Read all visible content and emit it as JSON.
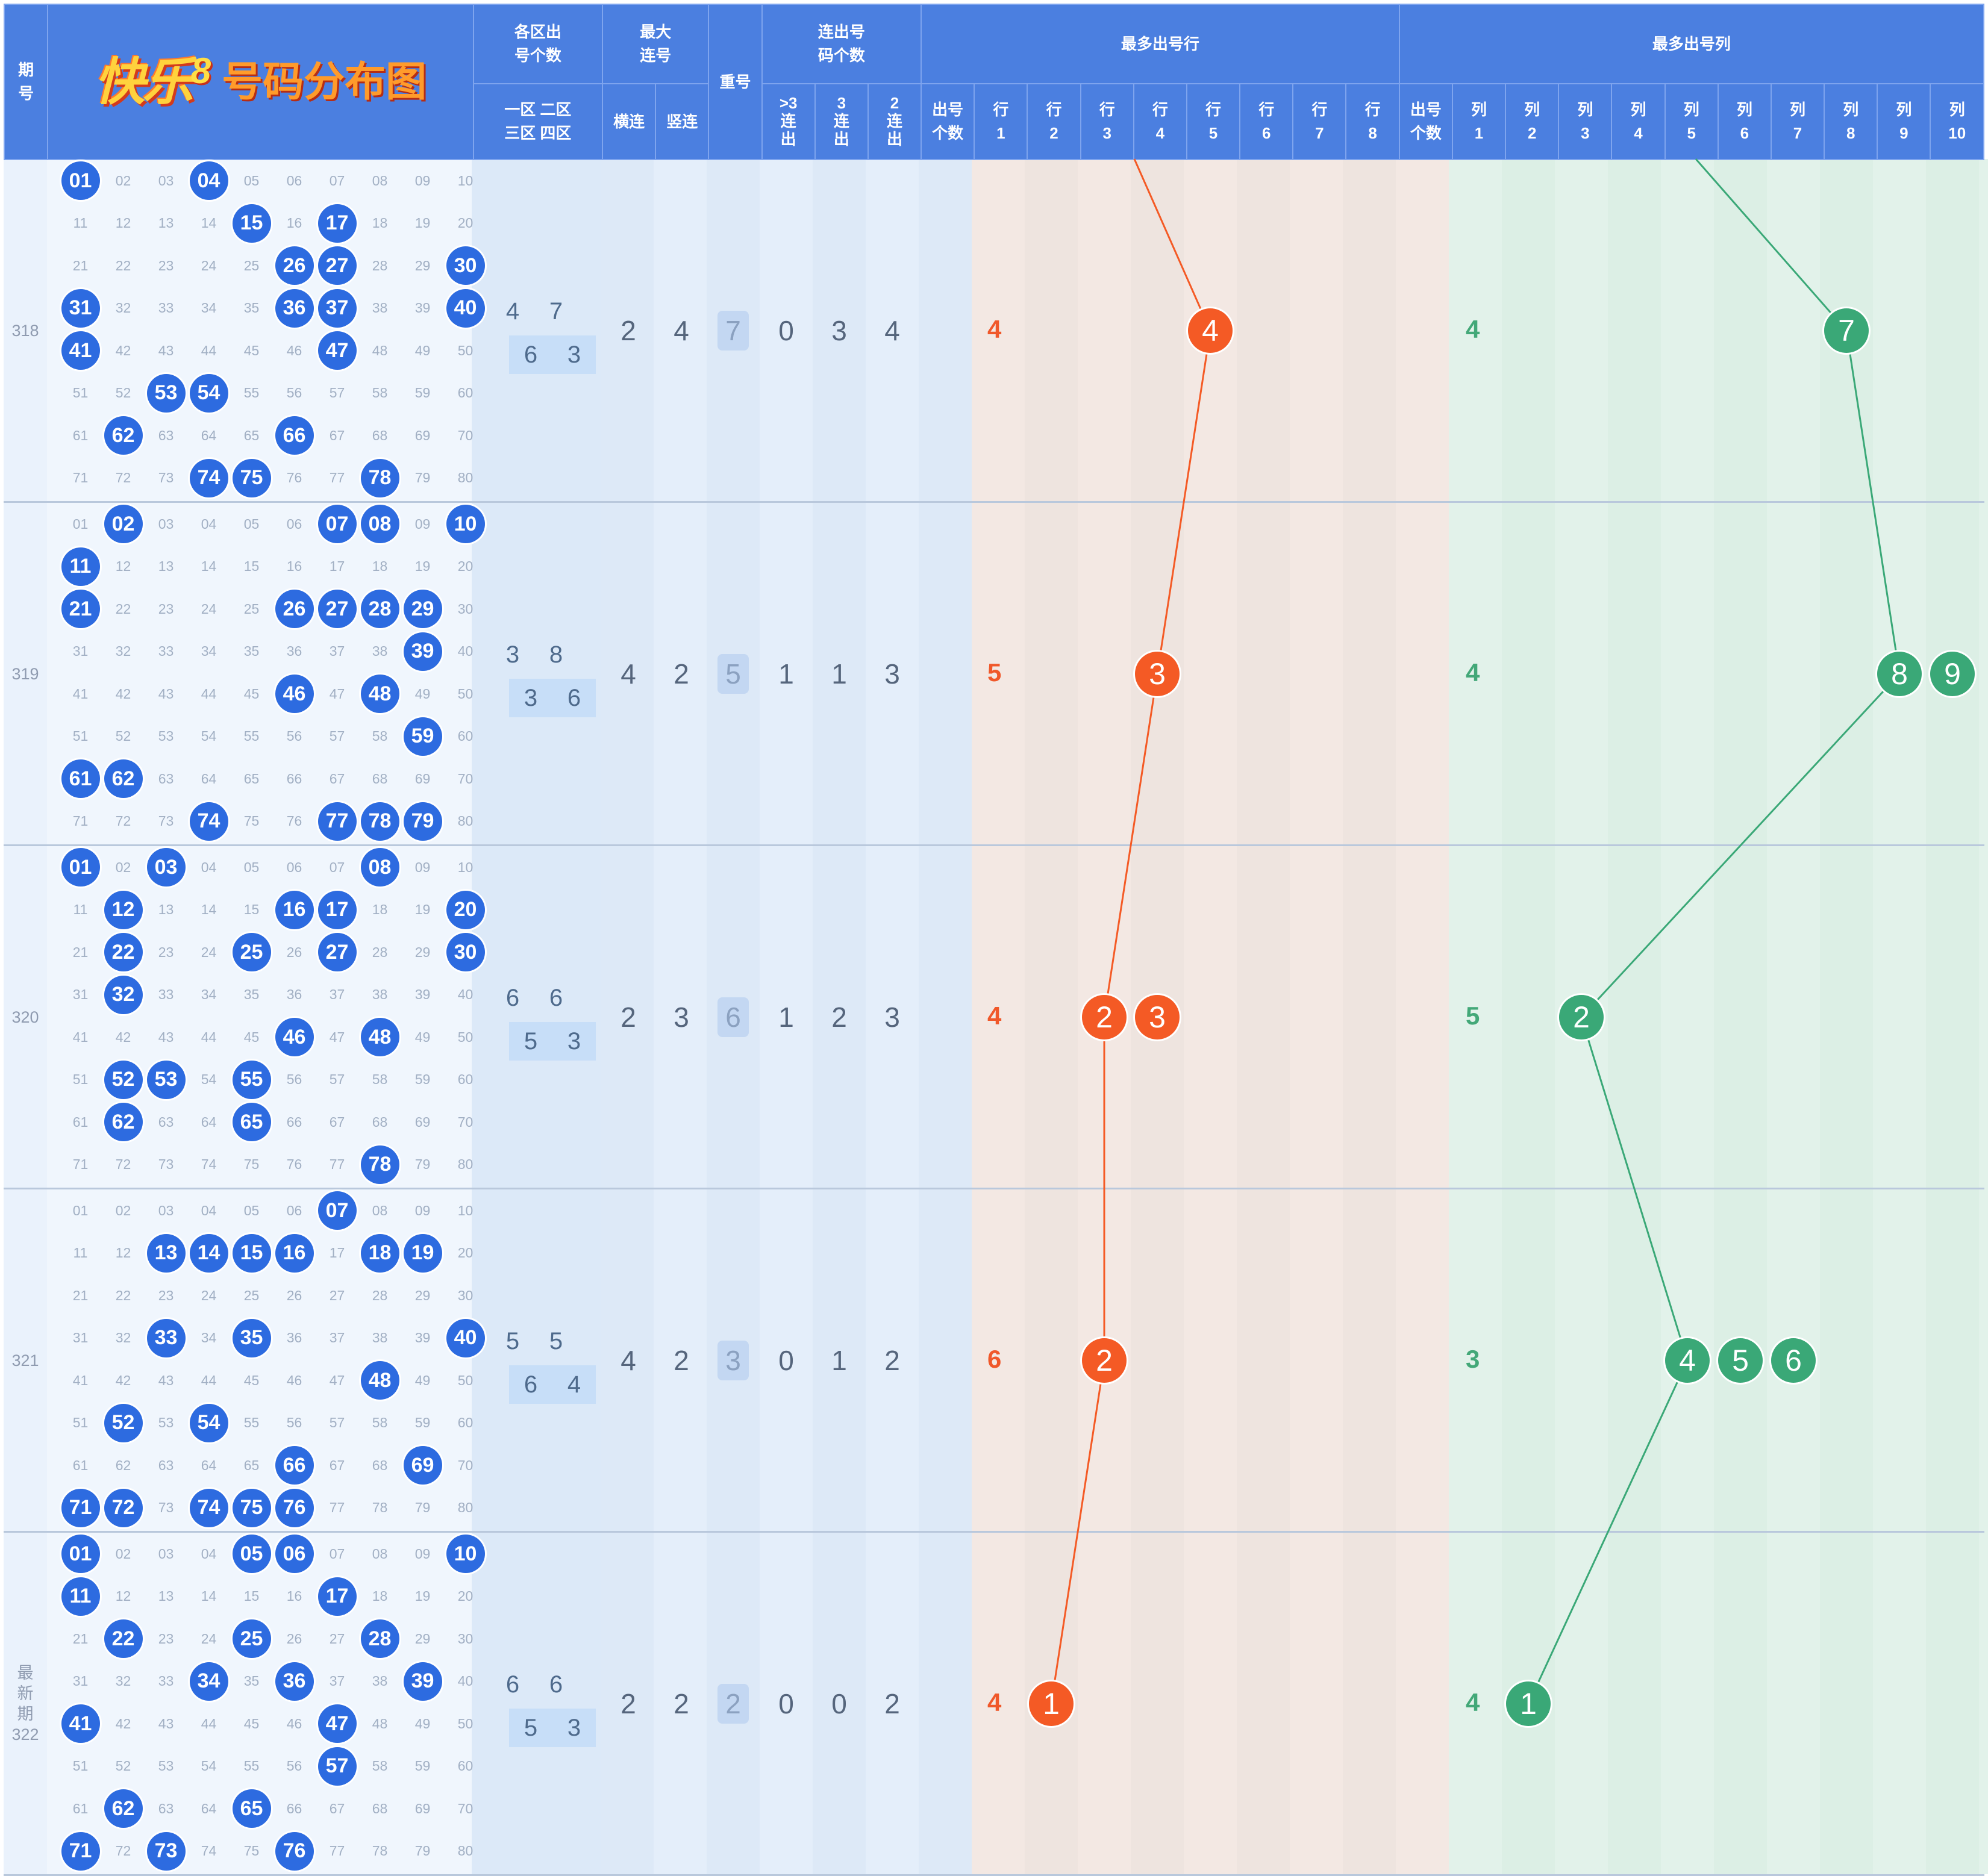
{
  "header": {
    "period": "期\n号",
    "logo_main": "快乐",
    "logo_eight": "8",
    "logo_sub": "号码分布图",
    "zone_counts": "各区出\n号个数",
    "max_consecutive": "最大\n连号",
    "repeat": "重号",
    "consecutive_count": "连出号\n码个数",
    "most_row": "最多出号行",
    "most_col": "最多出号列",
    "zone_sub": "一区 二区\n三区 四区",
    "horiz": "横连",
    "vert": "竖连",
    "gt3": ">3\n连\n出",
    "c3": "3\n连\n出",
    "c2": "2\n连\n出",
    "row_count": "出号\n个数",
    "rows": [
      "行\n1",
      "行\n2",
      "行\n3",
      "行\n4",
      "行\n5",
      "行\n6",
      "行\n7",
      "行\n8"
    ],
    "col_count": "出号\n个数",
    "cols": [
      "列\n1",
      "列\n2",
      "列\n3",
      "列\n4",
      "列\n5",
      "列\n6",
      "列\n7",
      "列\n8",
      "列\n9",
      "列\n10"
    ]
  },
  "colors": {
    "header_bg": "#4b7fe0",
    "hit_blue": "#2d6be0",
    "row_line": "#f45a25",
    "col_line": "#3aa877"
  },
  "periods": [
    {
      "label": "318",
      "hits": [
        1,
        4,
        15,
        17,
        26,
        27,
        30,
        31,
        36,
        37,
        40,
        41,
        47,
        53,
        54,
        62,
        66,
        74,
        75,
        78
      ],
      "zones": [
        "4",
        "7",
        "6",
        "3"
      ],
      "horiz": "2",
      "vert": "4",
      "repeat": "7",
      "gt3": "0",
      "c3": "3",
      "c2": "4",
      "row_count": "4",
      "row_marks": [
        {
          "row": 4,
          "label": "4"
        }
      ],
      "row_line_at": 4,
      "col_count": "4",
      "col_marks": [
        {
          "col": 7,
          "label": "7"
        }
      ],
      "col_line_at": 7
    },
    {
      "label": "319",
      "hits": [
        2,
        7,
        8,
        10,
        11,
        21,
        26,
        27,
        28,
        29,
        39,
        46,
        48,
        59,
        61,
        62,
        74,
        77,
        78,
        79
      ],
      "zones": [
        "3",
        "8",
        "3",
        "6"
      ],
      "horiz": "4",
      "vert": "2",
      "repeat": "5",
      "gt3": "1",
      "c3": "1",
      "c2": "3",
      "row_count": "5",
      "row_marks": [
        {
          "row": 3,
          "label": "3"
        }
      ],
      "row_line_at": 3,
      "col_count": "4",
      "col_marks": [
        {
          "col": 8,
          "label": "8"
        },
        {
          "col": 9,
          "label": "9"
        }
      ],
      "col_line_at": 8
    },
    {
      "label": "320",
      "hits": [
        1,
        3,
        8,
        12,
        16,
        17,
        20,
        22,
        25,
        27,
        30,
        32,
        46,
        48,
        52,
        53,
        55,
        62,
        65,
        78
      ],
      "zones": [
        "6",
        "6",
        "5",
        "3"
      ],
      "horiz": "2",
      "vert": "3",
      "repeat": "6",
      "gt3": "1",
      "c3": "2",
      "c2": "3",
      "row_count": "4",
      "row_marks": [
        {
          "row": 2,
          "label": "2"
        },
        {
          "row": 3,
          "label": "3"
        }
      ],
      "row_line_at": 2,
      "col_count": "5",
      "col_marks": [
        {
          "col": 2,
          "label": "2"
        }
      ],
      "col_line_at": 2
    },
    {
      "label": "321",
      "hits": [
        7,
        13,
        14,
        15,
        16,
        18,
        19,
        33,
        35,
        40,
        48,
        52,
        54,
        66,
        69,
        71,
        72,
        74,
        75,
        76
      ],
      "zones": [
        "5",
        "5",
        "6",
        "4"
      ],
      "horiz": "4",
      "vert": "2",
      "repeat": "3",
      "gt3": "0",
      "c3": "1",
      "c2": "2",
      "row_count": "6",
      "row_marks": [
        {
          "row": 2,
          "label": "2"
        }
      ],
      "row_line_at": 2,
      "col_count": "3",
      "col_marks": [
        {
          "col": 4,
          "label": "4"
        },
        {
          "col": 5,
          "label": "5"
        },
        {
          "col": 6,
          "label": "6"
        }
      ],
      "col_line_at": 4
    },
    {
      "label": "最\n新\n期\n322",
      "hits": [
        1,
        5,
        6,
        10,
        11,
        17,
        22,
        25,
        28,
        34,
        36,
        39,
        41,
        47,
        57,
        62,
        65,
        71,
        73,
        76
      ],
      "zones": [
        "6",
        "6",
        "5",
        "3"
      ],
      "horiz": "2",
      "vert": "2",
      "repeat": "2",
      "gt3": "0",
      "c3": "0",
      "c2": "2",
      "row_count": "4",
      "row_marks": [
        {
          "row": 1,
          "label": "1"
        }
      ],
      "row_line_at": 1,
      "col_count": "4",
      "col_marks": [
        {
          "col": 1,
          "label": "1"
        }
      ],
      "col_line_at": 1
    }
  ]
}
